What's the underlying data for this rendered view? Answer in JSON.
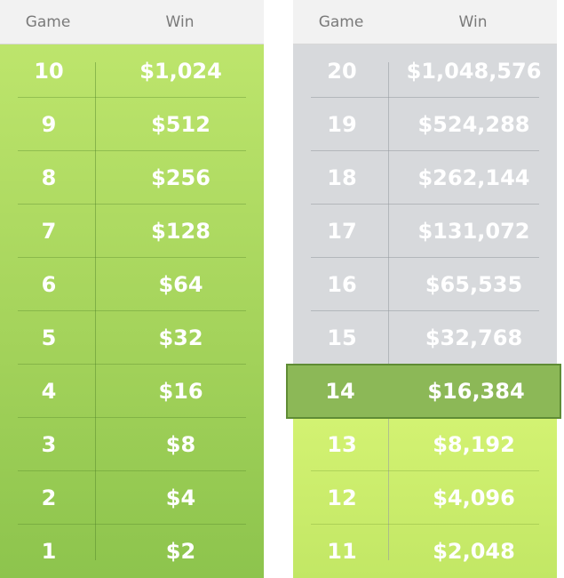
{
  "columns": {
    "game_label": "Game",
    "win_label": "Win"
  },
  "left_table": {
    "rows": [
      {
        "game": "10",
        "win": "$1,024"
      },
      {
        "game": "9",
        "win": "$512"
      },
      {
        "game": "8",
        "win": "$256"
      },
      {
        "game": "7",
        "win": "$128"
      },
      {
        "game": "6",
        "win": "$64"
      },
      {
        "game": "5",
        "win": "$32"
      },
      {
        "game": "4",
        "win": "$16"
      },
      {
        "game": "3",
        "win": "$8"
      },
      {
        "game": "2",
        "win": "$4"
      },
      {
        "game": "1",
        "win": "$2"
      }
    ]
  },
  "right_table": {
    "rows": [
      {
        "game": "20",
        "win": "$1,048,576"
      },
      {
        "game": "19",
        "win": "$524,288"
      },
      {
        "game": "18",
        "win": "$262,144"
      },
      {
        "game": "17",
        "win": "$131,072"
      },
      {
        "game": "16",
        "win": "$65,535"
      },
      {
        "game": "15",
        "win": "$32,768"
      },
      {
        "game": "14",
        "win": "$16,384"
      },
      {
        "game": "13",
        "win": "$8,192"
      },
      {
        "game": "12",
        "win": "$4,096"
      },
      {
        "game": "11",
        "win": "$2,048"
      }
    ],
    "highlighted_game": "14"
  },
  "colors": {
    "left_green": "#a4d35b",
    "right_gray": "#d7d9dc",
    "right_lime": "#d3f272",
    "highlight_fill": "#8cb857",
    "highlight_border": "#5f8c35"
  }
}
